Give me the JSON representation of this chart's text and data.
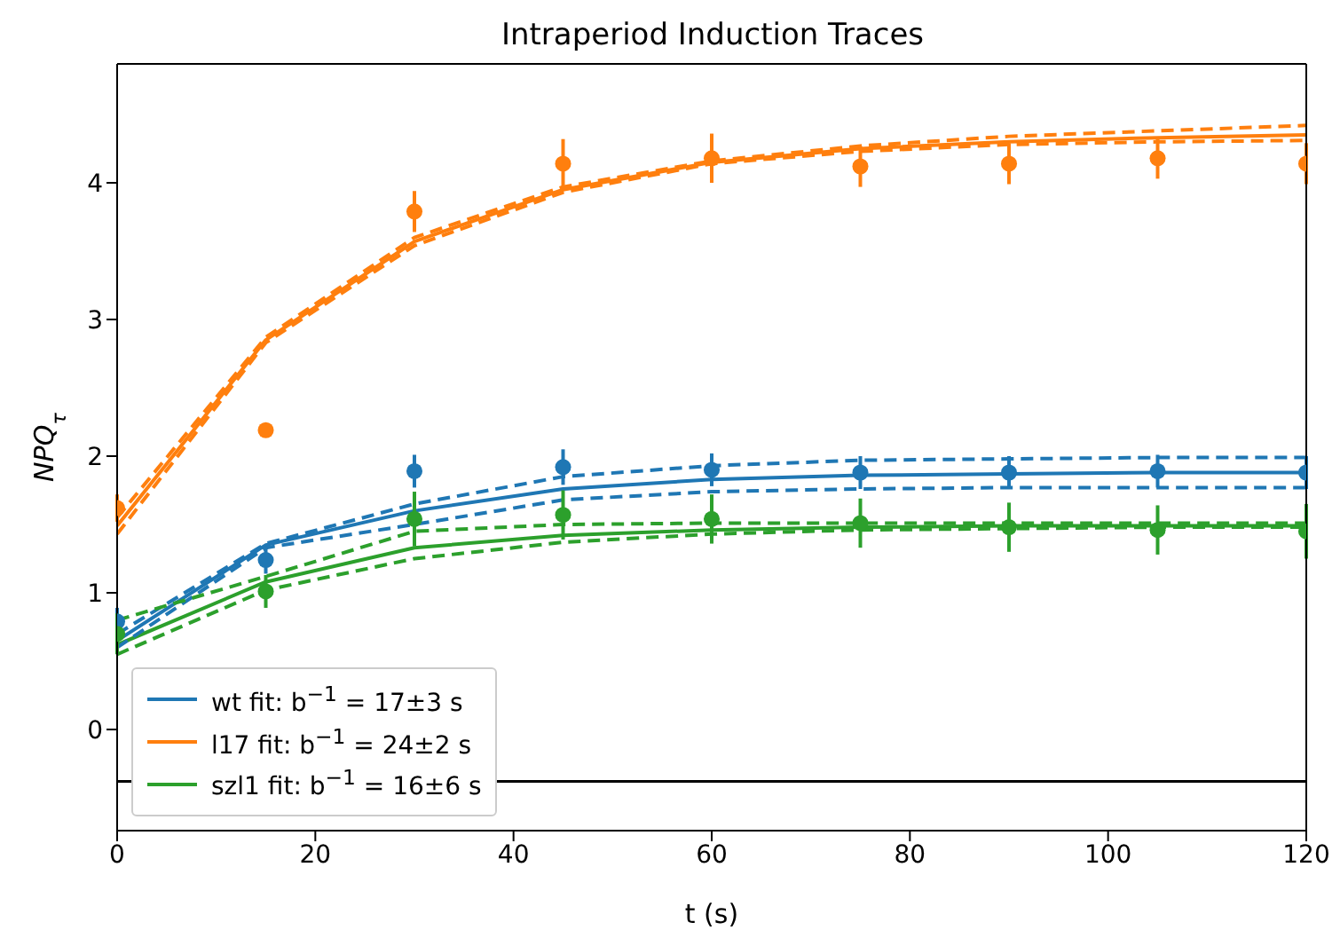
{
  "chart_data": {
    "type": "line",
    "title": "Intraperiod Induction Traces",
    "xlabel": "t (s)",
    "ylabel": "NPQ$_{τ}$",
    "xlim": [
      0,
      120
    ],
    "xticks": [
      0,
      20,
      40,
      60,
      80,
      100,
      120
    ],
    "ylim": [
      -0.74,
      4.87
    ],
    "yticks": [
      0,
      1,
      2,
      3,
      4
    ],
    "legend": "bottom left",
    "marker": "none",
    "ref_lines": [
      {
        "axis": "y",
        "value": -0.38,
        "color": "#000000"
      }
    ],
    "series": [
      {
        "name": "wt fit: b$^{−1}$ = 17±3 s",
        "color": "#1f77b4",
        "x": [
          0,
          15,
          30,
          45,
          60,
          75,
          90,
          105,
          120
        ],
        "values": [
          0.65,
          1.35,
          1.6,
          1.76,
          1.83,
          1.86,
          1.87,
          1.88,
          1.88
        ]
      },
      {
        "name": "l17 fit: b$^{−1}$ = 24±2 s",
        "color": "#ff7f0e",
        "x": [
          0,
          15,
          30,
          45,
          60,
          75,
          90,
          105,
          120
        ],
        "values": [
          1.49,
          2.85,
          3.57,
          3.95,
          4.15,
          4.25,
          4.3,
          4.33,
          4.35
        ]
      },
      {
        "name": "szl1 fit: b$^{−1}$ = 16±6 s",
        "color": "#2ca02c",
        "x": [
          0,
          15,
          30,
          45,
          60,
          75,
          90,
          105,
          120
        ],
        "values": [
          0.62,
          1.08,
          1.33,
          1.42,
          1.46,
          1.48,
          1.49,
          1.49,
          1.49
        ]
      },
      {
        "color": "#1f77b4",
        "line_style": "dashed",
        "x": [
          0,
          15,
          30,
          45,
          60,
          75,
          90,
          105,
          120
        ],
        "values": [
          0.7,
          1.36,
          1.65,
          1.85,
          1.93,
          1.97,
          1.98,
          1.99,
          1.99
        ]
      },
      {
        "color": "#1f77b4",
        "line_style": "dashed",
        "x": [
          0,
          15,
          30,
          45,
          60,
          75,
          90,
          105,
          120
        ],
        "values": [
          0.6,
          1.33,
          1.5,
          1.68,
          1.74,
          1.76,
          1.77,
          1.77,
          1.77
        ]
      },
      {
        "color": "#ff7f0e",
        "line_style": "dashed",
        "x": [
          0,
          15,
          30,
          45,
          60,
          75,
          90,
          105,
          120
        ],
        "values": [
          1.55,
          2.87,
          3.6,
          3.97,
          4.16,
          4.27,
          4.34,
          4.38,
          4.42
        ]
      },
      {
        "color": "#ff7f0e",
        "line_style": "dashed",
        "x": [
          0,
          15,
          30,
          45,
          60,
          75,
          90,
          105,
          120
        ],
        "values": [
          1.43,
          2.83,
          3.54,
          3.93,
          4.14,
          4.23,
          4.28,
          4.3,
          4.31
        ]
      },
      {
        "color": "#2ca02c",
        "line_style": "dashed",
        "x": [
          0,
          15,
          30,
          45,
          60,
          75,
          90,
          105,
          120
        ],
        "values": [
          0.8,
          1.12,
          1.45,
          1.5,
          1.51,
          1.51,
          1.51,
          1.51,
          1.51
        ]
      },
      {
        "color": "#2ca02c",
        "line_style": "dashed",
        "x": [
          0,
          15,
          30,
          45,
          60,
          75,
          90,
          105,
          120
        ],
        "values": [
          0.55,
          1.02,
          1.25,
          1.37,
          1.43,
          1.46,
          1.47,
          1.48,
          1.48
        ]
      },
      {
        "type": "scatter",
        "marker": "circle",
        "color": "#1f77b4",
        "x": [
          0,
          15,
          30,
          45,
          60,
          75,
          90,
          105,
          120
        ],
        "values": [
          0.79,
          1.24,
          1.89,
          1.92,
          1.9,
          1.88,
          1.88,
          1.89,
          1.88
        ],
        "errors": [
          0.1,
          0.1,
          0.12,
          0.13,
          0.12,
          0.12,
          0.12,
          0.12,
          0.12
        ]
      },
      {
        "type": "scatter",
        "marker": "circle",
        "color": "#ff7f0e",
        "x": [
          0,
          15,
          30,
          45,
          60,
          75,
          90,
          105,
          120
        ],
        "values": [
          1.62,
          2.19,
          3.79,
          4.14,
          4.18,
          4.12,
          4.14,
          4.18,
          4.14
        ],
        "errors": [
          0.1,
          0.05,
          0.15,
          0.18,
          0.18,
          0.15,
          0.15,
          0.15,
          0.15
        ]
      },
      {
        "type": "scatter",
        "marker": "circle",
        "color": "#2ca02c",
        "x": [
          0,
          15,
          30,
          45,
          60,
          75,
          90,
          105,
          120
        ],
        "values": [
          0.7,
          1.01,
          1.54,
          1.57,
          1.54,
          1.51,
          1.48,
          1.46,
          1.45
        ],
        "errors": [
          0.15,
          0.12,
          0.2,
          0.18,
          0.18,
          0.18,
          0.18,
          0.18,
          0.2
        ]
      }
    ]
  }
}
